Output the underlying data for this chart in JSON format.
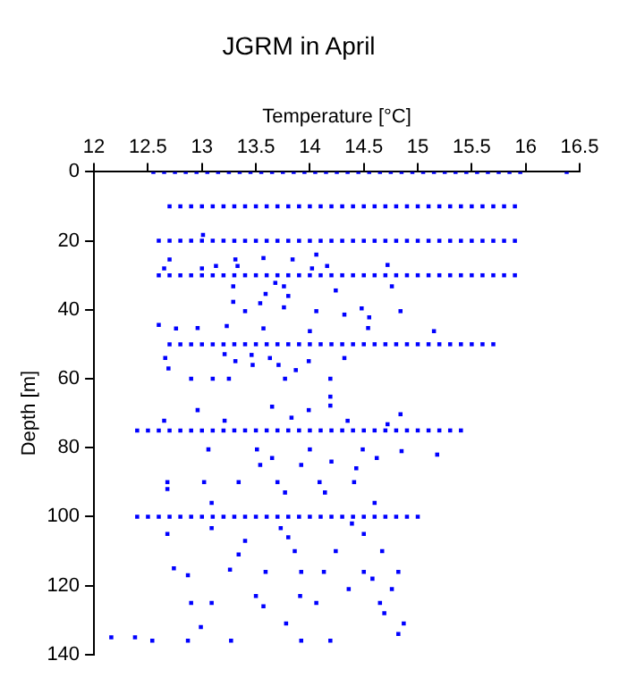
{
  "chart_data": {
    "type": "scatter",
    "title": "JGRM in April",
    "xlabel": "Temperature [°C]",
    "ylabel": "Depth [m]",
    "xlim": [
      12,
      16.5
    ],
    "xticks": [
      12,
      12.5,
      13,
      13.5,
      14,
      14.5,
      15,
      15.5,
      16,
      16.5
    ],
    "ylim": [
      140,
      0
    ],
    "yticks": [
      0,
      20,
      40,
      60,
      80,
      100,
      120,
      140
    ],
    "marker": "square",
    "grid": false,
    "series": [
      {
        "color": "#0000ff",
        "x": [
          12.55,
          12.65,
          12.75,
          12.85,
          12.95,
          13.05,
          13.15,
          13.25,
          13.35,
          13.45,
          13.55,
          13.65,
          13.75,
          13.85,
          13.95,
          14.05,
          14.15,
          14.25,
          14.35,
          14.45,
          14.55,
          14.65,
          14.75,
          14.85,
          14.95,
          15.05,
          15.15,
          15.25,
          15.35,
          15.45,
          15.55,
          15.65,
          15.75,
          15.85,
          15.95,
          16.38
        ],
        "values": [
          0,
          0,
          0,
          0,
          0,
          0,
          0,
          0,
          0,
          0,
          0,
          0,
          0,
          0,
          0,
          0,
          0,
          0,
          0,
          0,
          0,
          0,
          0,
          0,
          0,
          0,
          0,
          0,
          0,
          0,
          0,
          0,
          0,
          0,
          0,
          0
        ]
      },
      {
        "color": "#0000ff",
        "x": [
          12.7,
          12.8,
          12.9,
          13,
          13.1,
          13.2,
          13.3,
          13.4,
          13.5,
          13.6,
          13.7,
          13.8,
          13.9,
          14,
          14.1,
          14.2,
          14.3,
          14.4,
          14.5,
          14.6,
          14.7,
          14.8,
          14.9,
          15,
          15.1,
          15.2,
          15.3,
          15.4,
          15.5,
          15.6,
          15.7,
          15.8,
          15.9
        ],
        "values": [
          10,
          10,
          10,
          10,
          10,
          10,
          10,
          10,
          10,
          10,
          10,
          10,
          10,
          10,
          10,
          10,
          10,
          10,
          10,
          10,
          10,
          10,
          10,
          10,
          10,
          10,
          10,
          10,
          10,
          10,
          10,
          10,
          10
        ]
      },
      {
        "color": "#0000ff",
        "x": [
          12.6,
          12.7,
          12.8,
          12.9,
          13,
          13.1,
          13.2,
          13.3,
          13.4,
          13.5,
          13.6,
          13.7,
          13.8,
          13.9,
          14,
          14.1,
          14.2,
          14.3,
          14.4,
          14.5,
          14.6,
          14.7,
          14.8,
          14.9,
          15,
          15.1,
          15.2,
          15.3,
          15.4,
          15.5,
          15.6,
          15.7,
          15.8,
          15.9
        ],
        "values": [
          20,
          20,
          20,
          20,
          20,
          20,
          20,
          20,
          20,
          20,
          20,
          20,
          20,
          20,
          20,
          20,
          20,
          20,
          20,
          20,
          20,
          20,
          20,
          20,
          20,
          20,
          20,
          20,
          20,
          20,
          20,
          20,
          20,
          20
        ]
      },
      {
        "color": "#0000ff",
        "x": [
          12.6,
          12.7,
          12.8,
          12.9,
          13,
          13.1,
          13.2,
          13.3,
          13.4,
          13.5,
          13.6,
          13.7,
          13.8,
          13.9,
          14,
          14.1,
          14.2,
          14.3,
          14.4,
          14.5,
          14.6,
          14.7,
          14.8,
          14.9,
          15,
          15.1,
          15.2,
          15.3,
          15.4,
          15.5,
          15.6,
          15.7,
          15.8,
          15.9
        ],
        "values": [
          30,
          30,
          30,
          30,
          30,
          30,
          30,
          30,
          30,
          30,
          30,
          30,
          30,
          30,
          30,
          30,
          30,
          30,
          30,
          30,
          30,
          30,
          30,
          30,
          30,
          30,
          30,
          30,
          30,
          30,
          30,
          30,
          30,
          30
        ]
      },
      {
        "color": "#0000ff",
        "x": [
          12.7,
          12.8,
          12.9,
          13,
          13.1,
          13.2,
          13.3,
          13.4,
          13.5,
          13.6,
          13.7,
          13.8,
          13.9,
          14,
          14.1,
          14.2,
          14.3,
          14.4,
          14.5,
          14.6,
          14.7,
          14.8,
          14.9,
          15,
          15.1,
          15.2,
          15.3,
          15.4,
          15.5,
          15.6,
          15.7
        ],
        "values": [
          50,
          50,
          50,
          50,
          50,
          50,
          50,
          50,
          50,
          50,
          50,
          50,
          50,
          50,
          50,
          50,
          50,
          50,
          50,
          50,
          50,
          50,
          50,
          50,
          50,
          50,
          50,
          50,
          50,
          50,
          50
        ]
      },
      {
        "color": "#0000ff",
        "x": [
          12.4,
          12.5,
          12.6,
          12.7,
          12.8,
          12.9,
          13,
          13.1,
          13.2,
          13.3,
          13.4,
          13.5,
          13.6,
          13.7,
          13.8,
          13.9,
          14,
          14.1,
          14.2,
          14.3,
          14.4,
          14.5,
          14.6,
          14.7,
          14.8,
          14.9,
          15,
          15.1,
          15.2,
          15.3,
          15.4
        ],
        "values": [
          75,
          75,
          75,
          75,
          75,
          75,
          75,
          75,
          75,
          75,
          75,
          75,
          75,
          75,
          75,
          75,
          75,
          75,
          75,
          75,
          75,
          75,
          75,
          75,
          75,
          75,
          75,
          75,
          75,
          75,
          75
        ]
      },
      {
        "color": "#0000ff",
        "x": [
          12.4,
          12.5,
          12.6,
          12.7,
          12.8,
          12.9,
          13,
          13.1,
          13.2,
          13.3,
          13.4,
          13.5,
          13.6,
          13.7,
          13.8,
          13.9,
          14,
          14.1,
          14.2,
          14.3,
          14.4,
          14.5,
          14.6,
          14.7,
          14.8,
          14.9,
          15
        ],
        "values": [
          100,
          100,
          100,
          100,
          100,
          100,
          100,
          100,
          100,
          100,
          100,
          100,
          100,
          100,
          100,
          100,
          100,
          100,
          100,
          100,
          100,
          100,
          100,
          100,
          100,
          100,
          100
        ]
      },
      {
        "color": "#0000ff",
        "x": [
          12.7,
          13.01,
          13.31,
          13.57,
          13.84,
          14.06,
          12.65,
          13,
          13.13,
          13.33,
          14.02,
          14.16,
          14.72,
          13.29,
          13.68,
          13.76,
          14.24,
          14.76,
          13.29,
          13.59,
          13.8,
          13.4,
          13.54,
          13.76,
          14.06,
          14.32,
          14.48,
          14.55,
          14.84,
          12.6,
          12.76,
          12.96,
          13.23,
          13.57,
          14,
          14.54,
          15.15,
          12.66,
          12.69,
          12.9,
          13.1,
          13.25,
          13.21,
          13.31,
          13.46,
          13.47,
          13.63,
          13.71,
          13.77,
          13.87,
          13.99,
          14.19,
          14.19,
          14.19,
          14.32,
          12.96,
          13.65,
          13.99,
          14.84,
          12.65,
          13.21,
          13.83,
          14.35,
          14.72,
          13.06,
          13.51,
          14,
          14.49,
          14.85,
          15.18,
          13.65,
          14.62,
          13.54,
          13.92,
          14.2,
          14.43,
          12.68,
          13.02,
          13.34,
          13.7,
          14.09,
          14.41,
          12.68,
          13.09,
          13.77,
          14.14,
          14.6,
          13.09,
          13.73,
          14.39,
          12.68,
          13.4,
          13.8,
          14.5,
          13.34,
          13.86,
          14.24,
          14.67,
          12.74,
          13.26,
          13.59,
          13.92,
          14.13,
          14.5,
          14.82,
          12.87,
          14.58,
          14.36,
          14.76,
          13.5,
          12.9,
          13.09,
          13.91,
          14.06,
          14.65,
          13.57,
          14.69,
          14.87,
          12.99,
          13.78,
          12.16,
          12.38,
          12.54,
          12.87,
          13.27,
          13.92,
          14.19,
          14.82
        ],
        "values": [
          25.4,
          18.3,
          25.4,
          25,
          25.4,
          24,
          28,
          28,
          27.3,
          27.3,
          28,
          27.3,
          27,
          33.2,
          32.2,
          33.2,
          34.4,
          33.2,
          37.7,
          35.4,
          36,
          40.4,
          38.1,
          39.3,
          40.4,
          41.4,
          39.6,
          42.2,
          40.4,
          44.4,
          45.4,
          45.3,
          44.7,
          45.4,
          46.2,
          45.3,
          46.2,
          54,
          57,
          60,
          60,
          60,
          52.9,
          54.9,
          53.1,
          56,
          54,
          56,
          60,
          57.5,
          54.9,
          60,
          65.2,
          67.8,
          54,
          69.1,
          68.1,
          69.1,
          70.3,
          72.2,
          72.2,
          71.3,
          72.2,
          73.2,
          80.5,
          80.5,
          80.5,
          80.5,
          81,
          82,
          83,
          83,
          85,
          85,
          84,
          86,
          90,
          90,
          90,
          90,
          90,
          90,
          92,
          96,
          93,
          93,
          96,
          103.3,
          103.3,
          102,
          105,
          107,
          106,
          105,
          111,
          110,
          110,
          110,
          115,
          115.4,
          116,
          116,
          116,
          116,
          116,
          117,
          118,
          121,
          121,
          123,
          125,
          125,
          123,
          125,
          125,
          126,
          128,
          131,
          132,
          131,
          135,
          135,
          136,
          136,
          136,
          136,
          136,
          134
        ]
      }
    ]
  }
}
